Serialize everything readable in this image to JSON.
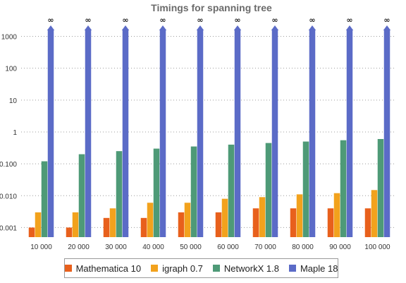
{
  "chart_data": {
    "type": "bar",
    "title": "Timings for spanning tree",
    "xlabel": "",
    "ylabel": "",
    "yscale": "log",
    "ylim": [
      0.0005,
      3000
    ],
    "grid": "horizontal dotted",
    "legend_position": "bottom",
    "ytick_values": [
      0.001,
      0.01,
      0.1,
      1,
      10,
      100,
      1000
    ],
    "ytick_labels": [
      "0.001",
      "0.010",
      "0.100",
      "1",
      "10",
      "100",
      "1000"
    ],
    "categories": [
      "10 000",
      "20 000",
      "30 000",
      "40 000",
      "50 000",
      "60 000",
      "70 000",
      "80 000",
      "90 000",
      "100 000"
    ],
    "series": [
      {
        "name": "Mathematica 10",
        "color": "#e8601c",
        "values": [
          0.001,
          0.001,
          0.002,
          0.002,
          0.003,
          0.003,
          0.004,
          0.004,
          0.004,
          0.004
        ]
      },
      {
        "name": "igraph 0.7",
        "color": "#f2a21d",
        "values": [
          0.003,
          0.003,
          0.004,
          0.006,
          0.006,
          0.008,
          0.009,
          0.011,
          0.012,
          0.015
        ]
      },
      {
        "name": "NetworkX 1.8",
        "color": "#4e9a77",
        "values": [
          0.12,
          0.2,
          0.25,
          0.3,
          0.35,
          0.4,
          0.45,
          0.5,
          0.55,
          0.6
        ]
      },
      {
        "name": "Maple 18",
        "color": "#5b6bc7",
        "infinite": true,
        "value_label": "∞",
        "values": [
          null,
          null,
          null,
          null,
          null,
          null,
          null,
          null,
          null,
          null
        ]
      }
    ]
  }
}
